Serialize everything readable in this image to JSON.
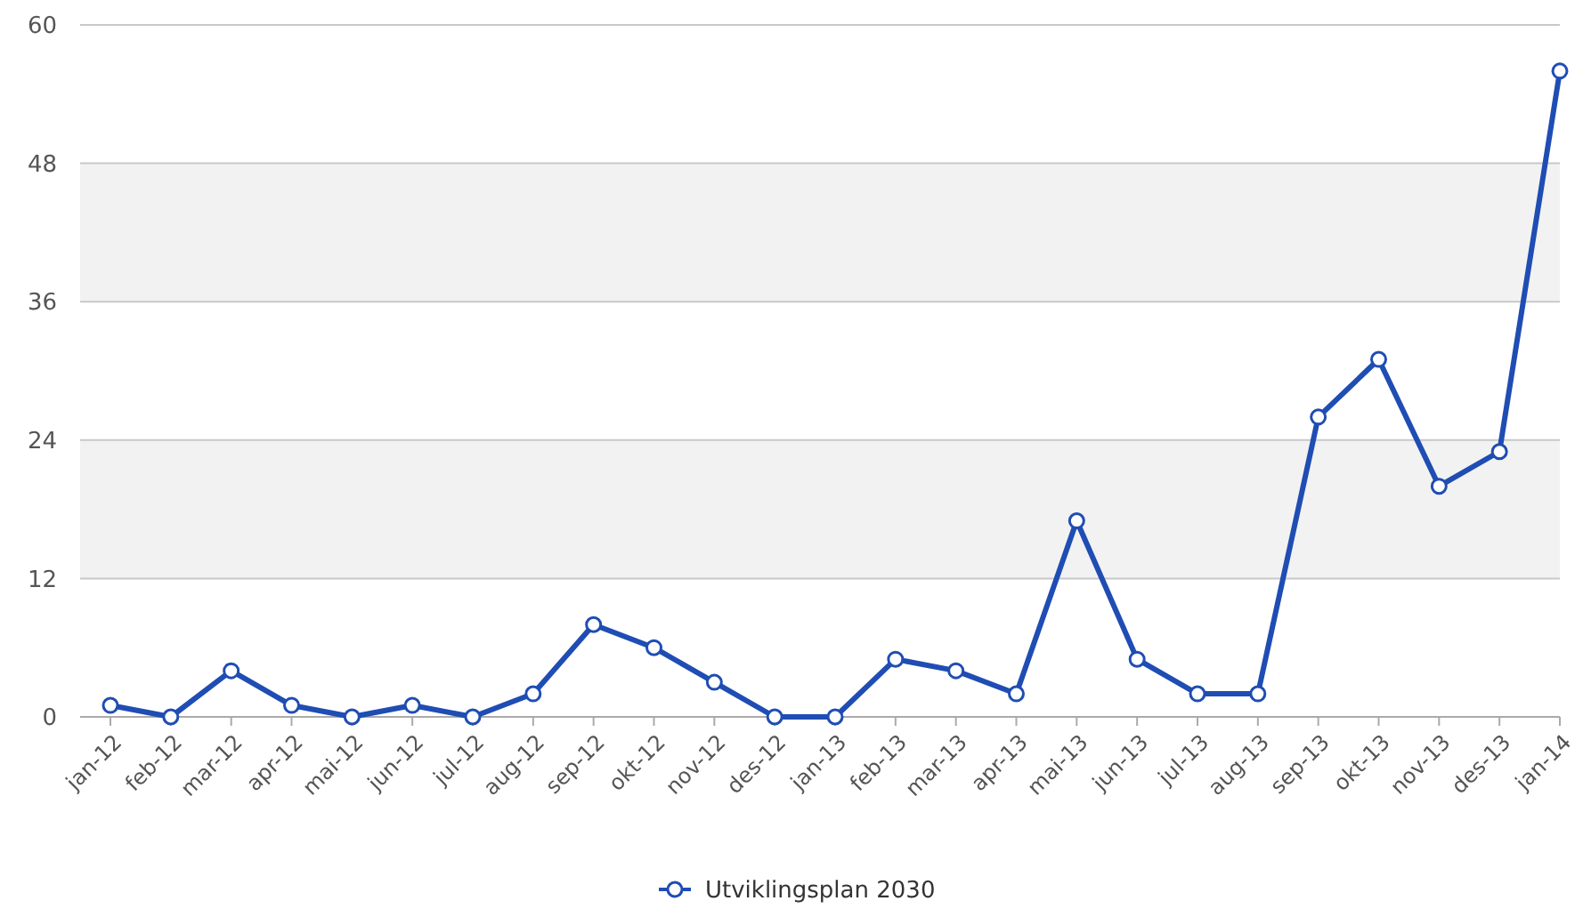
{
  "chart_data": {
    "type": "line",
    "categories": [
      "jan-12",
      "feb-12",
      "mar-12",
      "apr-12",
      "mai-12",
      "jun-12",
      "jul-12",
      "aug-12",
      "sep-12",
      "okt-12",
      "nov-12",
      "des-12",
      "jan-13",
      "feb-13",
      "mar-13",
      "apr-13",
      "mai-13",
      "jun-13",
      "jul-13",
      "aug-13",
      "sep-13",
      "okt-13",
      "nov-13",
      "des-13",
      "jan-14"
    ],
    "series": [
      {
        "name": "Utviklingsplan 2030",
        "color": "#1f4db3",
        "values": [
          1,
          0,
          4,
          1,
          0,
          1,
          0,
          2,
          8,
          6,
          3,
          0,
          0,
          5,
          4,
          2,
          17,
          5,
          2,
          2,
          26,
          31,
          20,
          23,
          56
        ]
      }
    ],
    "ylim": [
      0,
      60
    ],
    "yticks": [
      0,
      12,
      24,
      36,
      48,
      60
    ],
    "grid": "y",
    "bands": [
      {
        "axis": "y",
        "from": 12,
        "to": 24,
        "color": "#f2f2f2"
      },
      {
        "axis": "y",
        "from": 36,
        "to": 48,
        "color": "#f2f2f2"
      }
    ],
    "marker": "circle",
    "line_style": "solid",
    "legend": "bottom"
  }
}
